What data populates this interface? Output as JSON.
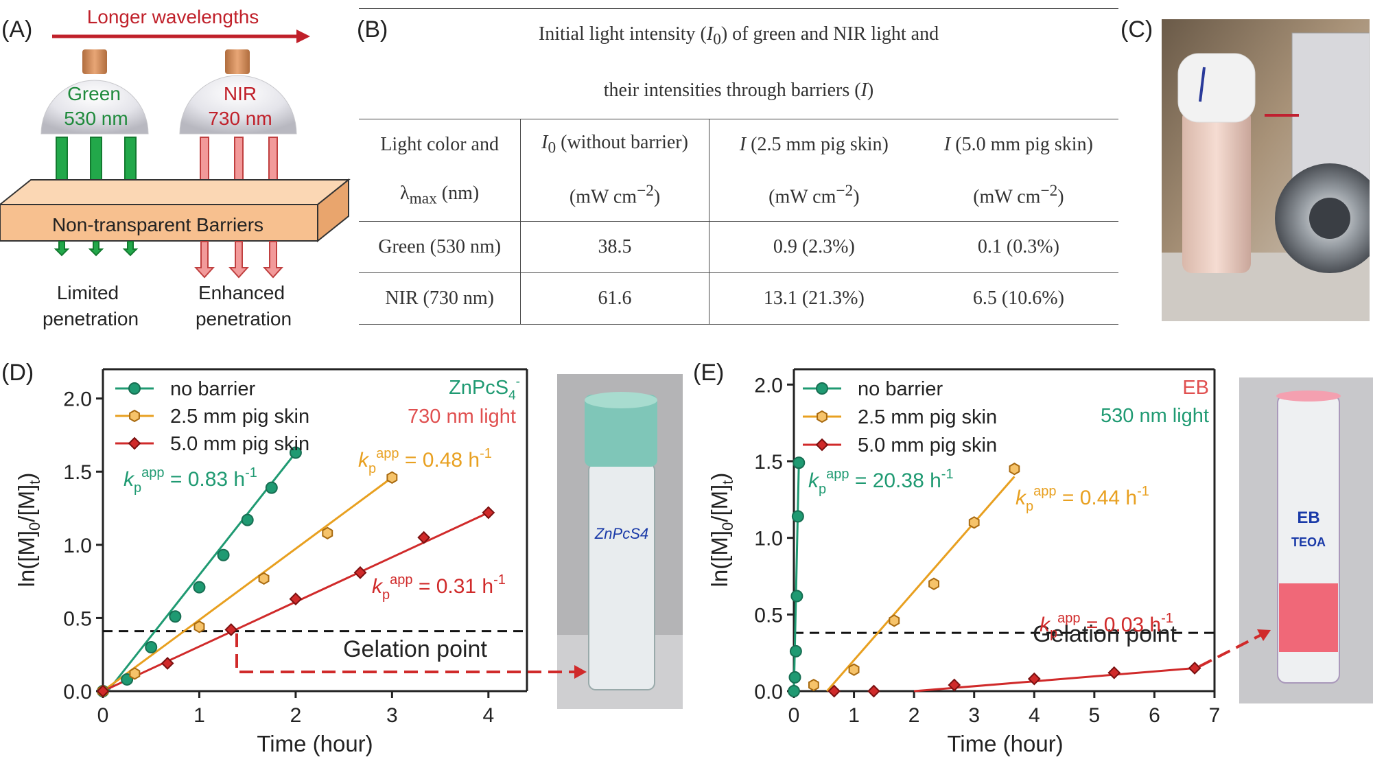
{
  "panel_letters": {
    "a": "(A)",
    "b": "(B)",
    "c": "(C)",
    "d": "(D)",
    "e": "(E)"
  },
  "schematic": {
    "arrow_label": "Longer wavelengths",
    "green_lamp": {
      "name": "Green",
      "wavelength": "530 nm"
    },
    "nir_lamp": {
      "name": "NIR",
      "wavelength": "730 nm"
    },
    "barrier_label": "Non-transparent Barriers",
    "left_caption": [
      "Limited",
      "penetration"
    ],
    "right_caption": [
      "Enhanced",
      "penetration"
    ],
    "colors": {
      "green": "#22a84a",
      "nir": "#f29a9a",
      "barrier": "#f7c08f",
      "title_red": "#c0202a"
    }
  },
  "table": {
    "caption_line1_pre": "Initial light intensity (",
    "caption_line1_sym": "I",
    "caption_line1_sub": "0",
    "caption_line1_post": ") of green and NIR light and",
    "caption_line2_pre": "their intensities through barriers (",
    "caption_line2_sym": "I",
    "caption_line2_post": ")",
    "headers": [
      {
        "line1": "Light color and",
        "line2_pre": "λ",
        "line2_sub": "max",
        "line2_post": " (nm)"
      },
      {
        "line1_sym": "I",
        "line1_sub": "0",
        "line1_post": " (without barrier)",
        "line2": "(mW cm",
        "line2_sup": "−2",
        "line2_end": ")"
      },
      {
        "line1_sym": "I",
        "line1_post": " (2.5 mm pig skin)",
        "line2": "(mW cm",
        "line2_sup": "−2",
        "line2_end": ")"
      },
      {
        "line1_sym": "I",
        "line1_post": " (5.0 mm pig skin)",
        "line2": "(mW cm",
        "line2_sup": "−2",
        "line2_end": ")"
      }
    ],
    "rows": [
      [
        "Green (530 nm)",
        "38.5",
        "0.9 (2.3%)",
        "0.1 (0.3%)"
      ],
      [
        "NIR (730 nm)",
        "61.6",
        "13.1 (21.3%)",
        "6.5 (10.6%)"
      ]
    ]
  },
  "photo_c": {
    "label": "apparatus photo"
  },
  "chart_data": [
    {
      "type": "scatter",
      "xlabel": "Time (hour)",
      "ylabel": "ln([M]0/[M]t)",
      "xlim": [
        0,
        4.4
      ],
      "ylim": [
        0,
        2.2
      ],
      "xticks": [
        0,
        1,
        2,
        3,
        4
      ],
      "yticks": [
        0.0,
        0.5,
        1.0,
        1.5,
        2.0
      ],
      "corner_label": {
        "line1": "ZnPcS",
        "line1_sub": "4",
        "line1_sup": "-",
        "line2": "730 nm light"
      },
      "gelation": {
        "y": 0.41,
        "label": "Gelation point",
        "marker_x": 1.33
      },
      "series": [
        {
          "name": "no barrier",
          "color": "#1f9a72",
          "marker": "circle",
          "x": [
            0,
            0.25,
            0.5,
            0.75,
            1.0,
            1.25,
            1.5,
            1.75,
            2.0
          ],
          "y": [
            0.0,
            0.08,
            0.3,
            0.51,
            0.71,
            0.93,
            1.17,
            1.39,
            1.63
          ],
          "fit": [
            [
              0.05,
              0.0
            ],
            [
              2.0,
              1.63
            ]
          ],
          "kp": "0.83"
        },
        {
          "name": "2.5 mm pig skin",
          "color": "#e8a020",
          "marker": "hexagon",
          "x": [
            0,
            0.33,
            1.0,
            1.67,
            2.33,
            3.0
          ],
          "y": [
            0.0,
            0.12,
            0.44,
            0.77,
            1.08,
            1.46
          ],
          "fit": [
            [
              0.0,
              0.0
            ],
            [
              3.0,
              1.46
            ]
          ],
          "kp": "0.48"
        },
        {
          "name": "5.0 mm pig skin",
          "color": "#d02a2a",
          "marker": "diamond",
          "x": [
            0,
            0.67,
            1.33,
            2.0,
            2.67,
            3.33,
            4.0
          ],
          "y": [
            0.0,
            0.19,
            0.42,
            0.63,
            0.81,
            1.05,
            1.22
          ],
          "fit": [
            [
              0.0,
              0.0
            ],
            [
              4.0,
              1.22
            ]
          ],
          "kp": "0.31"
        }
      ]
    },
    {
      "type": "scatter",
      "xlabel": "Time (hour)",
      "ylabel": "ln([M]0/[M]t)",
      "xlim": [
        0,
        7
      ],
      "ylim": [
        0,
        2.1
      ],
      "xticks": [
        0,
        1,
        2,
        3,
        4,
        5,
        6,
        7
      ],
      "yticks": [
        0.0,
        0.5,
        1.0,
        1.5,
        2.0
      ],
      "corner_label": {
        "line1": "EB",
        "line2": "530 nm light"
      },
      "gelation": {
        "y": 0.38,
        "label": "Gelation point"
      },
      "series": [
        {
          "name": "no barrier",
          "color": "#1f9a72",
          "marker": "circle",
          "x": [
            0,
            0.017,
            0.033,
            0.05,
            0.067,
            0.083
          ],
          "y": [
            0.0,
            0.09,
            0.26,
            0.62,
            1.14,
            1.49
          ],
          "fit": [
            [
              0.0,
              0.0
            ],
            [
              0.083,
              1.49
            ]
          ],
          "kp": "20.38"
        },
        {
          "name": "2.5 mm pig skin",
          "color": "#e8a020",
          "marker": "hexagon",
          "x": [
            0.33,
            1.0,
            1.67,
            2.33,
            3.0,
            3.67
          ],
          "y": [
            0.04,
            0.14,
            0.46,
            0.7,
            1.1,
            1.45
          ],
          "fit": [
            [
              0.55,
              0.0
            ],
            [
              3.67,
              1.4
            ]
          ],
          "kp": "0.44"
        },
        {
          "name": "5.0 mm pig skin",
          "color": "#d02a2a",
          "marker": "diamond",
          "x": [
            0.67,
            1.33,
            2.67,
            4.0,
            5.33,
            6.67
          ],
          "y": [
            0.0,
            0.0,
            0.04,
            0.08,
            0.12,
            0.15
          ],
          "fit": [
            [
              2.0,
              0.0
            ],
            [
              6.67,
              0.15
            ]
          ],
          "kp": "0.03"
        }
      ]
    }
  ],
  "vial_d": {
    "handwriting": "ZnPcS4",
    "liquid_color": "#7fc6b8"
  },
  "vial_e": {
    "handwriting_1": "EB",
    "handwriting_2": "TEOA",
    "liquid_color": "#f06878"
  }
}
